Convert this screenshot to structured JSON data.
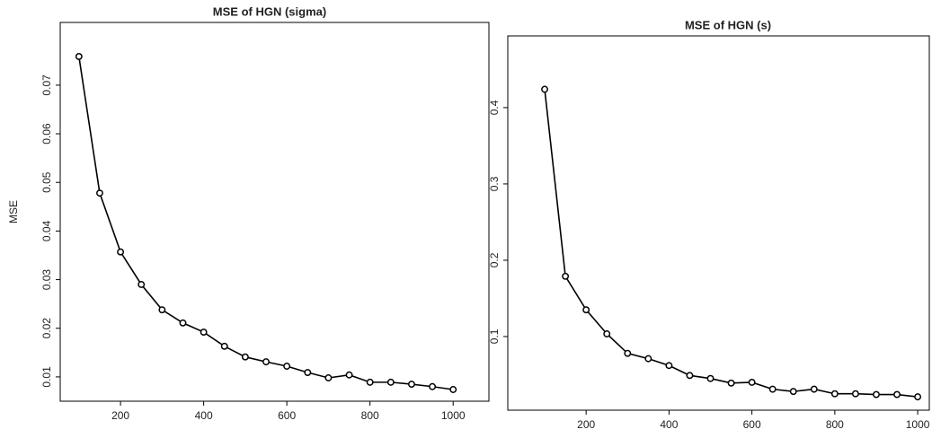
{
  "chart_data": [
    {
      "type": "line",
      "title": "MSE of HGN (sigma)",
      "y_label": "MSE",
      "color": "#000000",
      "x": [
        100,
        150,
        200,
        250,
        300,
        350,
        400,
        450,
        500,
        550,
        600,
        650,
        700,
        750,
        800,
        850,
        900,
        950,
        1000
      ],
      "values": [
        0.0759,
        0.0478,
        0.0357,
        0.029,
        0.0238,
        0.0211,
        0.0192,
        0.0163,
        0.0141,
        0.0131,
        0.0122,
        0.0109,
        0.0098,
        0.0104,
        0.0089,
        0.0089,
        0.0085,
        0.008,
        0.0074
      ],
      "xlim": [
        55,
        1086
      ],
      "ylim": [
        0.005,
        0.0829
      ],
      "xticks": [
        200,
        400,
        600,
        800,
        1000
      ],
      "yticks": [
        0.01,
        0.02,
        0.03,
        0.04,
        0.05,
        0.06,
        0.07
      ]
    },
    {
      "type": "line",
      "title": "MSE of HGN (s)",
      "color": "#000000",
      "x": [
        100,
        150,
        200,
        250,
        300,
        350,
        400,
        450,
        500,
        550,
        600,
        650,
        700,
        750,
        800,
        850,
        900,
        950,
        1000
      ],
      "values": [
        0.424,
        0.179,
        0.135,
        0.1035,
        0.078,
        0.071,
        0.062,
        0.049,
        0.045,
        0.039,
        0.04,
        0.031,
        0.028,
        0.031,
        0.025,
        0.025,
        0.024,
        0.024,
        0.021
      ],
      "xlim": [
        11,
        1028
      ],
      "ylim": [
        0.0035,
        0.494
      ],
      "xticks": [
        200,
        400,
        600,
        800,
        1000
      ],
      "yticks": [
        0.1,
        0.2,
        0.3,
        0.4
      ]
    }
  ]
}
